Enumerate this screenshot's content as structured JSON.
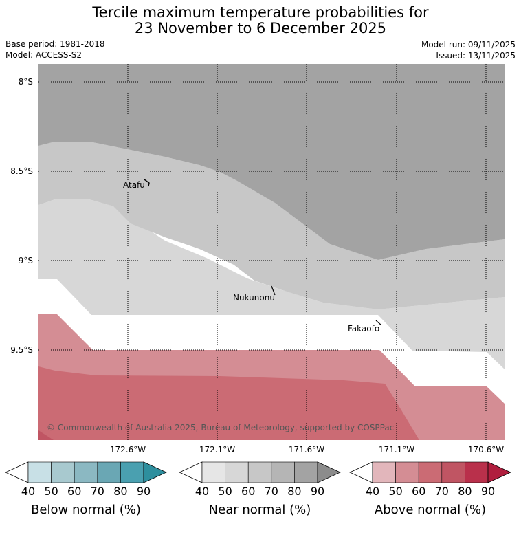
{
  "header": {
    "title_line1": "Tercile maximum temperature probabilities for",
    "title_line2": "23 November to 6 December 2025",
    "base_period": "Base period: 1981-2018",
    "model": "Model: ACCESS-S2",
    "model_run": "Model run: 09/11/2025",
    "issued": "Issued: 13/11/2025"
  },
  "map": {
    "lat_labels": [
      "8°S",
      "8.5°S",
      "9°S",
      "9.5°S"
    ],
    "lon_labels": [
      "172.6°W",
      "172.1°W",
      "171.6°W",
      "171.1°W",
      "170.6°W"
    ],
    "places": [
      "Atafu",
      "Nukunonu",
      "Fakaofo"
    ],
    "copyright": "© Commonwealth of Australia 2025, Bureau of Meteorology, supported by COSPPac"
  },
  "legend": {
    "ticks": [
      "40",
      "50",
      "60",
      "70",
      "80",
      "90"
    ],
    "below": {
      "label": "Below normal (%)",
      "colors": [
        "#ffffff",
        "#c8e0e6",
        "#a8c9cf",
        "#8bb8c2",
        "#6aa7b4",
        "#4aa0b0",
        "#2e8f9e"
      ]
    },
    "near": {
      "label": "Near normal (%)",
      "colors": [
        "#ffffff",
        "#e6e6e6",
        "#d7d7d7",
        "#c7c7c7",
        "#b5b5b5",
        "#a3a3a3",
        "#8c8c8c"
      ]
    },
    "above": {
      "label": "Above normal (%)",
      "colors": [
        "#ffffff",
        "#e2b6bb",
        "#d48d94",
        "#cb6b74",
        "#c05563",
        "#b9304b",
        "#b01e3e"
      ]
    }
  }
}
